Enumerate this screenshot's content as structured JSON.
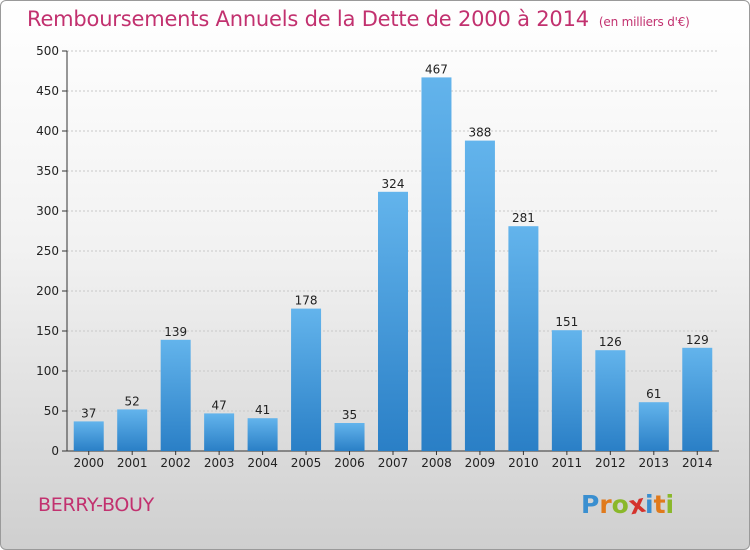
{
  "header": {
    "title": "Remboursements Annuels de la Dette de 2000 à 2014",
    "unit": "(en milliers d'€)"
  },
  "footer": {
    "commune": "BERRY-BOUY",
    "logo": {
      "text": "Proxiti",
      "letters": [
        {
          "ch": "P",
          "color": "#3a8fd0"
        },
        {
          "ch": "r",
          "color": "#e07a1c"
        },
        {
          "ch": "o",
          "color": "#8ab82a"
        },
        {
          "ch": "x",
          "color": "#d4322c"
        },
        {
          "ch": "i",
          "color": "#3a8fd0"
        },
        {
          "ch": "t",
          "color": "#e07a1c"
        },
        {
          "ch": "i",
          "color": "#8ab82a"
        }
      ]
    }
  },
  "colors": {
    "title": "#c2316f",
    "bar_top": "#63b4ec",
    "bar_bottom": "#2a7fc6",
    "grid": "#c8c8c8",
    "axis": "#333333"
  },
  "chart_data": {
    "type": "bar",
    "categories": [
      "2000",
      "2001",
      "2002",
      "2003",
      "2004",
      "2005",
      "2006",
      "2007",
      "2008",
      "2009",
      "2010",
      "2011",
      "2012",
      "2013",
      "2014"
    ],
    "values": [
      37,
      52,
      139,
      47,
      41,
      178,
      35,
      324,
      467,
      388,
      281,
      151,
      126,
      61,
      129
    ],
    "ylim": [
      0,
      500
    ],
    "yticks": [
      0,
      50,
      100,
      150,
      200,
      250,
      300,
      350,
      400,
      450,
      500
    ],
    "grid": true,
    "data_labels": true
  }
}
